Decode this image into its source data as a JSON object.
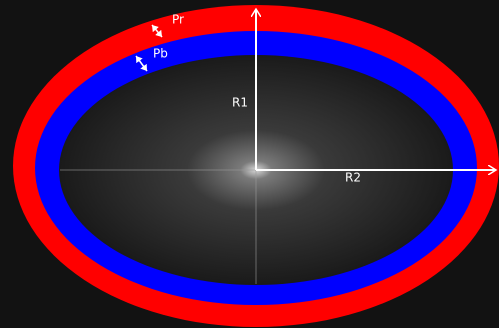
{
  "labels": {
    "pr": "Pr",
    "pb": "Pb",
    "r1": "R1",
    "r2": "R2"
  }
}
